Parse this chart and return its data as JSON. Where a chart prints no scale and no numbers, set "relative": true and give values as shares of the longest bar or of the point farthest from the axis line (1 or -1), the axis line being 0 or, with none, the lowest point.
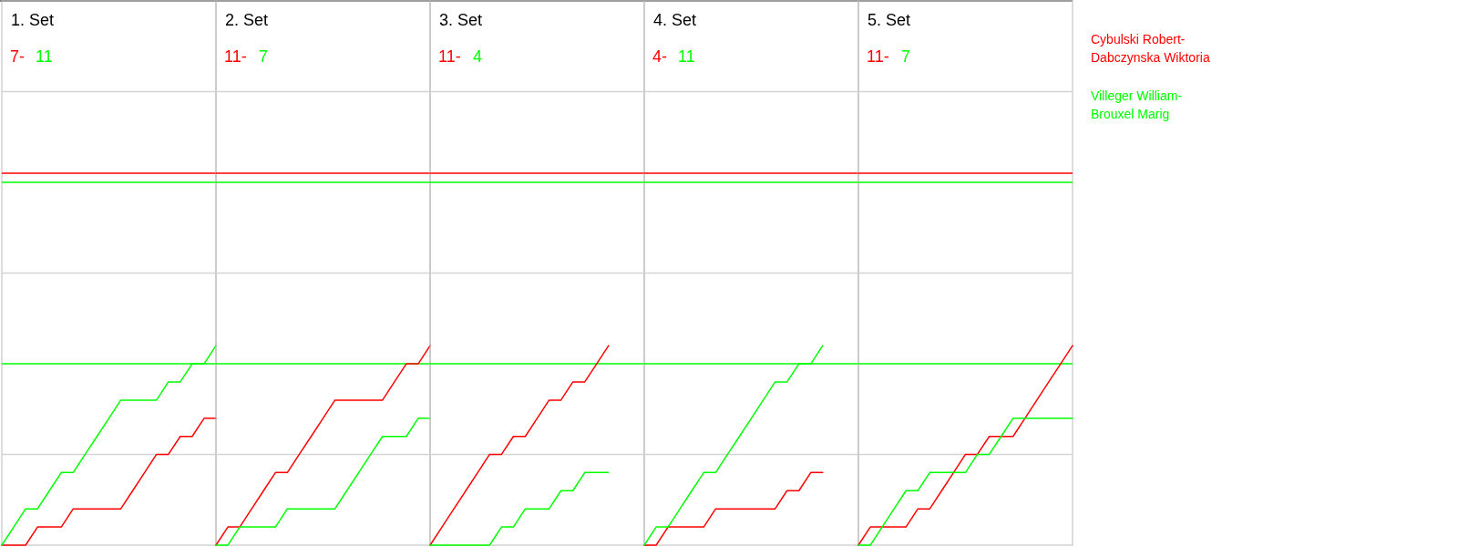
{
  "chart_data": [
    {
      "type": "line",
      "title": "1. Set",
      "annotations": [
        "7-",
        "11"
      ],
      "relative": true,
      "categories": [
        null,
        null,
        null,
        null,
        null,
        null,
        null,
        null,
        null,
        null,
        null,
        null,
        null,
        null,
        null,
        null,
        null,
        null,
        null
      ],
      "ref_lines": [
        {
          "axis": "y",
          "value": 0.455,
          "color": "#d4d4d4"
        },
        {
          "axis": "y",
          "value": 1.364,
          "color": "#d4d4d4"
        },
        {
          "axis": "y",
          "value": 2.273,
          "color": "#d4d4d4"
        },
        {
          "axis": "y",
          "value": 1.864,
          "color": "#ff0000"
        },
        {
          "axis": "y",
          "value": 1.818,
          "color": "#00ff00"
        },
        {
          "axis": "y",
          "value": 0.909,
          "color": "#00ff00"
        }
      ],
      "series": [
        {
          "color": "#ff0000",
          "values": [
            0,
            0,
            0,
            0.091,
            0.091,
            0.091,
            0.182,
            0.182,
            0.182,
            0.182,
            0.182,
            0.273,
            0.364,
            0.455,
            0.455,
            0.545,
            0.545,
            0.636,
            0.636
          ]
        },
        {
          "color": "#00ff00",
          "values": [
            0,
            0.091,
            0.182,
            0.182,
            0.273,
            0.364,
            0.364,
            0.455,
            0.545,
            0.636,
            0.727,
            0.727,
            0.727,
            0.727,
            0.818,
            0.818,
            0.909,
            0.909,
            1
          ]
        }
      ]
    },
    {
      "type": "line",
      "title": "2. Set",
      "annotations": [
        "11-",
        "7"
      ],
      "relative": true,
      "categories": [
        null,
        null,
        null,
        null,
        null,
        null,
        null,
        null,
        null,
        null,
        null,
        null,
        null,
        null,
        null,
        null,
        null,
        null,
        null
      ],
      "ref_lines": [
        {
          "axis": "y",
          "value": 0.455,
          "color": "#d4d4d4"
        },
        {
          "axis": "y",
          "value": 1.364,
          "color": "#d4d4d4"
        },
        {
          "axis": "y",
          "value": 2.273,
          "color": "#d4d4d4"
        },
        {
          "axis": "y",
          "value": 1.864,
          "color": "#ff0000"
        },
        {
          "axis": "y",
          "value": 1.818,
          "color": "#00ff00"
        },
        {
          "axis": "y",
          "value": 0.909,
          "color": "#00ff00"
        }
      ],
      "series": [
        {
          "color": "#ff0000",
          "values": [
            0,
            0.091,
            0.091,
            0.182,
            0.273,
            0.364,
            0.364,
            0.455,
            0.545,
            0.636,
            0.727,
            0.727,
            0.727,
            0.727,
            0.727,
            0.818,
            0.909,
            0.909,
            1
          ]
        },
        {
          "color": "#00ff00",
          "values": [
            0,
            0,
            0.091,
            0.091,
            0.091,
            0.091,
            0.182,
            0.182,
            0.182,
            0.182,
            0.182,
            0.273,
            0.364,
            0.455,
            0.545,
            0.545,
            0.545,
            0.636,
            0.636
          ]
        }
      ]
    },
    {
      "type": "line",
      "title": "3. Set",
      "annotations": [
        "11-",
        "4"
      ],
      "relative": true,
      "categories": [
        null,
        null,
        null,
        null,
        null,
        null,
        null,
        null,
        null,
        null,
        null,
        null,
        null,
        null,
        null,
        null,
        null,
        null,
        null
      ],
      "ref_lines": [
        {
          "axis": "y",
          "value": 0.455,
          "color": "#d4d4d4"
        },
        {
          "axis": "y",
          "value": 1.364,
          "color": "#d4d4d4"
        },
        {
          "axis": "y",
          "value": 2.273,
          "color": "#d4d4d4"
        },
        {
          "axis": "y",
          "value": 1.864,
          "color": "#ff0000"
        },
        {
          "axis": "y",
          "value": 1.818,
          "color": "#00ff00"
        },
        {
          "axis": "y",
          "value": 0.909,
          "color": "#00ff00"
        }
      ],
      "series": [
        {
          "color": "#ff0000",
          "values": [
            0,
            0.091,
            0.182,
            0.273,
            0.364,
            0.455,
            0.455,
            0.545,
            0.545,
            0.636,
            0.727,
            0.727,
            0.818,
            0.818,
            0.909,
            1,
            null,
            null,
            null
          ]
        },
        {
          "color": "#00ff00",
          "values": [
            0,
            0,
            0,
            0,
            0,
            0,
            0.091,
            0.091,
            0.182,
            0.182,
            0.182,
            0.273,
            0.273,
            0.364,
            0.364,
            0.364,
            null,
            null,
            null
          ]
        }
      ]
    },
    {
      "type": "line",
      "title": "4. Set",
      "annotations": [
        "4-",
        "11"
      ],
      "relative": true,
      "categories": [
        null,
        null,
        null,
        null,
        null,
        null,
        null,
        null,
        null,
        null,
        null,
        null,
        null,
        null,
        null,
        null,
        null,
        null,
        null
      ],
      "ref_lines": [
        {
          "axis": "y",
          "value": 0.455,
          "color": "#d4d4d4"
        },
        {
          "axis": "y",
          "value": 1.364,
          "color": "#d4d4d4"
        },
        {
          "axis": "y",
          "value": 2.273,
          "color": "#d4d4d4"
        },
        {
          "axis": "y",
          "value": 1.864,
          "color": "#ff0000"
        },
        {
          "axis": "y",
          "value": 1.818,
          "color": "#00ff00"
        },
        {
          "axis": "y",
          "value": 0.909,
          "color": "#00ff00"
        }
      ],
      "series": [
        {
          "color": "#ff0000",
          "values": [
            0,
            0,
            0.091,
            0.091,
            0.091,
            0.091,
            0.182,
            0.182,
            0.182,
            0.182,
            0.182,
            0.182,
            0.273,
            0.273,
            0.364,
            0.364,
            null,
            null,
            null
          ]
        },
        {
          "color": "#00ff00",
          "values": [
            0,
            0.091,
            0.091,
            0.182,
            0.273,
            0.364,
            0.364,
            0.455,
            0.545,
            0.636,
            0.727,
            0.818,
            0.818,
            0.909,
            0.909,
            1,
            null,
            null,
            null
          ]
        }
      ]
    },
    {
      "type": "line",
      "title": "5. Set",
      "annotations": [
        "11-",
        "7"
      ],
      "relative": true,
      "categories": [
        null,
        null,
        null,
        null,
        null,
        null,
        null,
        null,
        null,
        null,
        null,
        null,
        null,
        null,
        null,
        null,
        null,
        null,
        null
      ],
      "ref_lines": [
        {
          "axis": "y",
          "value": 0.455,
          "color": "#d4d4d4"
        },
        {
          "axis": "y",
          "value": 1.364,
          "color": "#d4d4d4"
        },
        {
          "axis": "y",
          "value": 2.273,
          "color": "#d4d4d4"
        },
        {
          "axis": "y",
          "value": 1.864,
          "color": "#ff0000"
        },
        {
          "axis": "y",
          "value": 1.818,
          "color": "#00ff00"
        },
        {
          "axis": "y",
          "value": 0.909,
          "color": "#00ff00"
        }
      ],
      "series": [
        {
          "name": "Cybulski Robert-Dabczynska Wiktoria",
          "color": "#ff0000",
          "values": [
            0,
            0.091,
            0.091,
            0.091,
            0.091,
            0.182,
            0.182,
            0.273,
            0.364,
            0.455,
            0.455,
            0.545,
            0.545,
            0.545,
            0.636,
            0.727,
            0.818,
            0.909,
            1
          ]
        },
        {
          "name": "Villeger William-Brouxel Marig",
          "color": "#00ff00",
          "values": [
            0,
            0,
            0.091,
            0.182,
            0.273,
            0.273,
            0.364,
            0.364,
            0.364,
            0.364,
            0.455,
            0.455,
            0.545,
            0.636,
            0.636,
            0.636,
            0.636,
            0.636,
            0.636
          ]
        }
      ]
    }
  ]
}
